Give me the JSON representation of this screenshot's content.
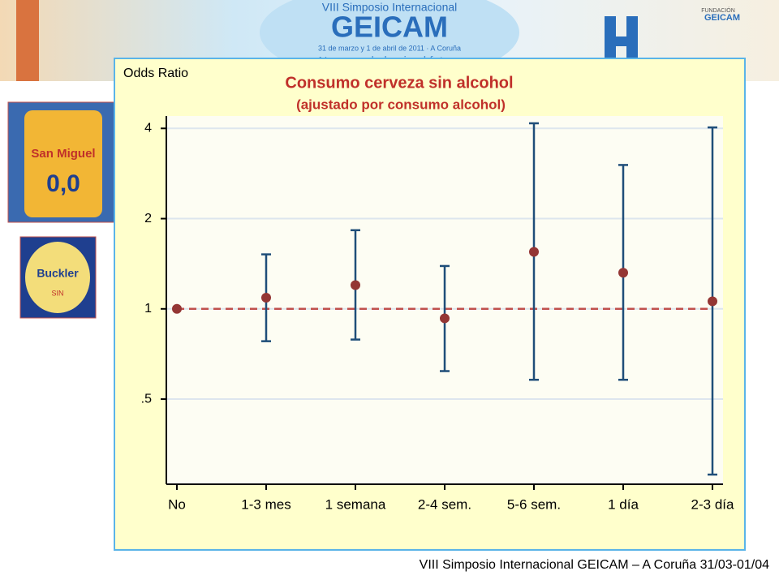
{
  "slide": {
    "banner_line1": "VIII Simposio Internacional",
    "banner_title": "GEICAM",
    "banner_date": "31 de marzo y 1 de abril de 2011 · A Coruña",
    "banner_motto": "Navegando hacia el futuro",
    "logo_top": "FUNDACIÓN",
    "logo_name": "GEICAM",
    "can_brand": "San Miguel",
    "can_label": "0,0",
    "badge_brand": "Buckler",
    "badge_sub": "SIN",
    "footer": "VIII Simposio Internacional GEICAM – A Coruña 31/03-01/04"
  },
  "chart_data": {
    "type": "errorbar",
    "title": "Consumo cerveza sin alcohol",
    "subtitle": "(ajustado por consumo alcohol)",
    "y_label": "Odds Ratio",
    "categories": [
      "No",
      "1-3 mes",
      "1 semana",
      "2-4 sem.",
      "5-6 sem.",
      "1 día",
      "2-3 día"
    ],
    "values": [
      1.0,
      1.09,
      1.2,
      0.93,
      1.55,
      1.32,
      1.06
    ],
    "lower": [
      null,
      0.78,
      0.79,
      0.62,
      0.58,
      0.58,
      0.28
    ],
    "upper": [
      null,
      1.52,
      1.83,
      1.39,
      4.16,
      3.02,
      4.03
    ],
    "point_color": "#943634",
    "bar_color": "#1f4e79",
    "reference_line": 1,
    "reference_color": "#c0504d",
    "log_scale": true,
    "grid": true,
    "ylim": [
      0.26,
      4.4
    ],
    "yticks": [
      {
        "value": 0.5,
        "label": ".5"
      },
      1,
      2,
      4
    ]
  }
}
